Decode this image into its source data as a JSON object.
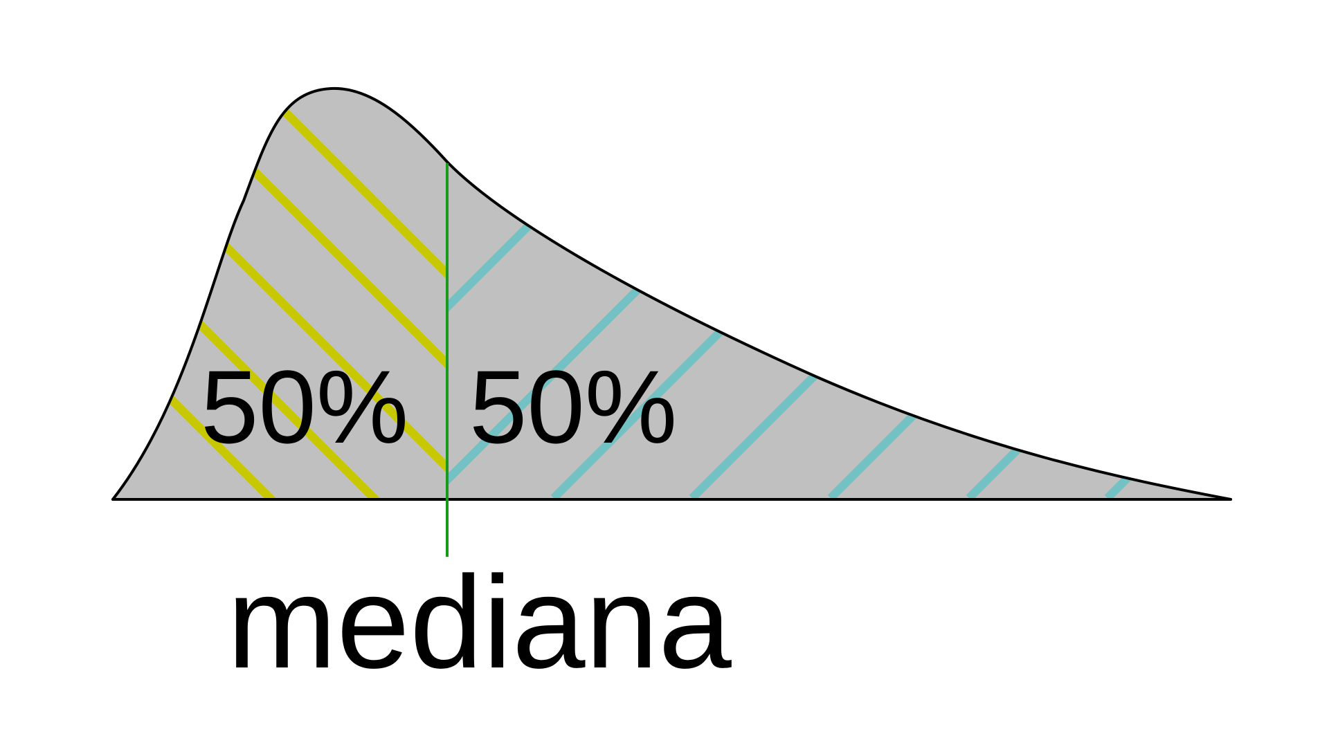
{
  "diagram": {
    "left_label": "50%",
    "right_label": "50%",
    "median_label": "mediana"
  },
  "colors": {
    "background": "#ffffff",
    "curve_fill": "#c0c0c0",
    "curve_stroke": "#000000",
    "left_hatch": "#c8c800",
    "right_hatch": "#72c2c4",
    "median_line": "#1a9a1a",
    "text": "#000000"
  }
}
